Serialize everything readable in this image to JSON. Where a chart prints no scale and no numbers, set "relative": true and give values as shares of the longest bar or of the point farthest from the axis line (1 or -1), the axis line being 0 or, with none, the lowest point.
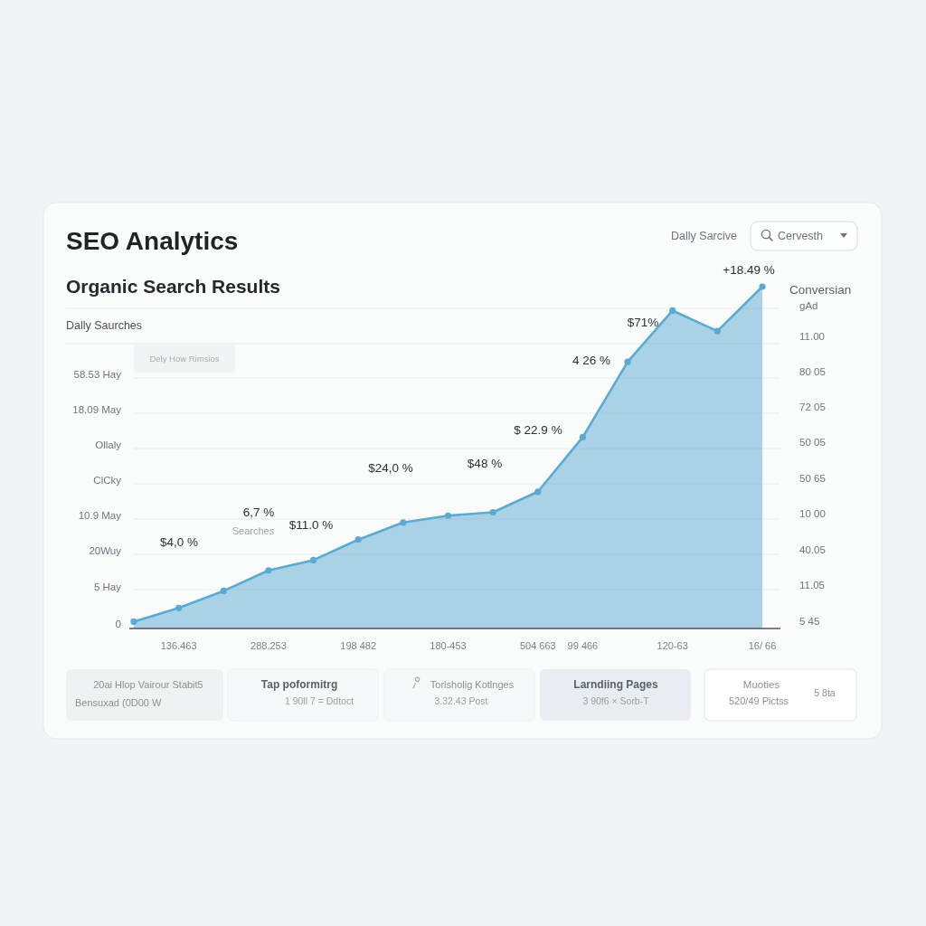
{
  "chart_data": {
    "type": "area",
    "title": "SEO Analytics",
    "subtitle": "Organic Search Results",
    "ylabel": "Dally Saurches",
    "y2label": "Conversian",
    "relative": true,
    "categories": [
      null,
      "136.463",
      null,
      "288.253",
      null,
      "198 482",
      null,
      "180-453",
      null,
      "504 663",
      "99 466",
      null,
      "120-63",
      null,
      "16/ 66"
    ],
    "series": [
      {
        "color": "#5aaad2",
        "values": [
          0.02,
          0.06,
          0.11,
          0.17,
          0.2,
          0.26,
          0.31,
          0.33,
          0.34,
          0.4,
          0.56,
          0.78,
          0.93,
          0.87,
          1
        ]
      }
    ],
    "marker": "circle",
    "grid": "y",
    "annotations": [
      "Dally Sarcive",
      "Cervesth",
      "Dely How Rimsios",
      "$4,0 %",
      "6,7 %",
      "Searches",
      "$11.0 %",
      "$24,0 %",
      "$48 %",
      "$ 22.9 %",
      "4 26 %",
      "$71%",
      "+18.49 %",
      "58.53 Hay",
      "18.09 May",
      "Ollaly",
      "ClCky",
      "10.9 May",
      "20Wuy",
      "5 Hay",
      "0",
      "gAd",
      "11.00",
      "80 05",
      "72 05",
      "50 05",
      "50 65",
      "10 00",
      "40.05",
      "11.05",
      "5 45",
      "20ai Hlop Vairour Stabit5",
      "Bensuxad (0D00 W",
      "Tap poformitrg",
      "1 90ll 7 = Ddtoct",
      "Torlsholig Kotlnges",
      "3.32.43 Post",
      "Larndiing Pages",
      "3 90f6 × Sorb-T",
      "Muoties",
      "520/49 Pictss",
      "5 8ta"
    ]
  }
}
